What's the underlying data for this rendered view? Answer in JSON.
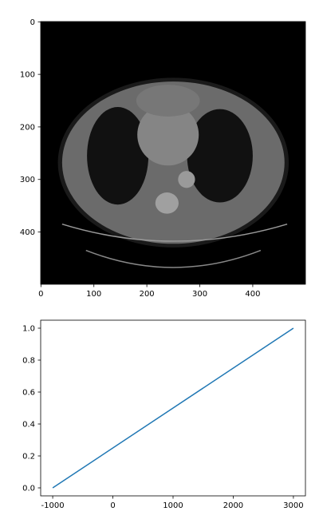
{
  "chart_data": [
    {
      "type": "image",
      "xlim": [
        -0.5,
        499.5
      ],
      "ylim": [
        499.5,
        -0.5
      ],
      "xticks": [
        0,
        100,
        200,
        300,
        400
      ],
      "yticks": [
        0,
        100,
        200,
        300,
        400
      ]
    },
    {
      "type": "line",
      "x": [
        -1000,
        3000
      ],
      "series": [
        {
          "color": "#1f77b4",
          "values": [
            0,
            1
          ]
        }
      ],
      "xlim": [
        -1200,
        3200
      ],
      "ylim": [
        -0.05,
        1.05
      ],
      "xticks": [
        -1000,
        0,
        1000,
        2000,
        3000
      ],
      "yticks": [
        {
          "value": 0,
          "label": "0.0"
        },
        0.2,
        0.4,
        0.6,
        0.8,
        {
          "value": 1,
          "label": "1.0"
        }
      ]
    }
  ]
}
